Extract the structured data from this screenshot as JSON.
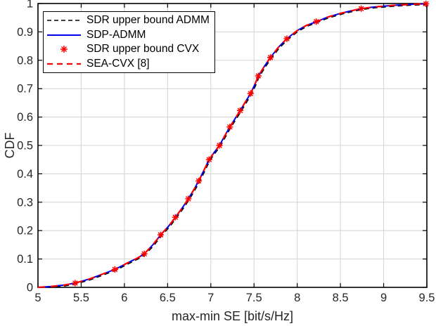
{
  "figure": {
    "kind": "matlab-style cdf figure",
    "background_color": "#ffffff",
    "axis_box_color": "#000000",
    "grid_color": "#d6d6d6",
    "tick_label_color": "#262626"
  },
  "axes": {
    "xlabel": "max-min SE [bit/s/Hz]",
    "ylabel": "CDF",
    "x_tick_labels": [
      "5",
      "5.5",
      "6",
      "6.5",
      "7",
      "7.5",
      "8",
      "8.5",
      "9",
      "9.5"
    ],
    "x_tick_values": [
      5,
      5.5,
      6,
      6.5,
      7,
      7.5,
      8,
      8.5,
      9,
      9.5
    ],
    "y_tick_labels": [
      "0",
      "0.1",
      "0.2",
      "0.3",
      "0.4",
      "0.5",
      "0.6",
      "0.7",
      "0.8",
      "0.9",
      "1"
    ],
    "y_tick_values": [
      0,
      0.1,
      0.2,
      0.3,
      0.4,
      0.5,
      0.6,
      0.7,
      0.8,
      0.9,
      1
    ]
  },
  "chart_data": {
    "type": "line",
    "title": "",
    "xlabel": "max-min SE [bit/s/Hz]",
    "ylabel": "CDF",
    "xlim": [
      5,
      9.5
    ],
    "ylim": [
      0,
      1
    ],
    "grid": true,
    "legend_position": "top-left",
    "point_sets": {
      "cdf_curve": {
        "x": [
          5.0,
          5.15,
          5.3,
          5.43,
          5.6,
          5.75,
          5.89,
          6.05,
          6.15,
          6.23,
          6.33,
          6.42,
          6.51,
          6.59,
          6.67,
          6.74,
          6.8,
          6.86,
          6.92,
          6.98,
          7.04,
          7.1,
          7.16,
          7.22,
          7.28,
          7.34,
          7.4,
          7.46,
          7.51,
          7.55,
          7.62,
          7.69,
          7.78,
          7.88,
          8.0,
          8.1,
          8.22,
          8.35,
          8.5,
          8.62,
          8.74,
          8.9,
          9.1,
          9.3,
          9.49,
          9.5
        ],
        "y": [
          0.0,
          0.003,
          0.008,
          0.015,
          0.03,
          0.047,
          0.063,
          0.088,
          0.103,
          0.118,
          0.15,
          0.185,
          0.215,
          0.247,
          0.28,
          0.312,
          0.342,
          0.375,
          0.412,
          0.45,
          0.476,
          0.5,
          0.533,
          0.565,
          0.594,
          0.623,
          0.653,
          0.683,
          0.715,
          0.745,
          0.779,
          0.81,
          0.845,
          0.876,
          0.905,
          0.922,
          0.936,
          0.952,
          0.965,
          0.974,
          0.982,
          0.988,
          0.993,
          0.997,
          0.999,
          1.0
        ]
      },
      "cvx_markers": {
        "x": [
          5.43,
          5.89,
          6.23,
          6.42,
          6.59,
          6.74,
          6.86,
          6.98,
          7.1,
          7.22,
          7.34,
          7.46,
          7.55,
          7.69,
          7.88,
          8.22,
          8.74,
          9.49
        ],
        "y": [
          0.015,
          0.063,
          0.118,
          0.185,
          0.247,
          0.312,
          0.375,
          0.45,
          0.5,
          0.565,
          0.623,
          0.683,
          0.745,
          0.81,
          0.876,
          0.936,
          0.982,
          0.999
        ]
      }
    },
    "series": [
      {
        "name": "SDR upper bound ADMM",
        "style": "dashed",
        "color": "#000000",
        "line_width": 1.6,
        "dash": "7 5",
        "points": "cdf_curve",
        "marker": "none"
      },
      {
        "name": "SDP-ADMM",
        "style": "solid",
        "color": "#0000ee",
        "line_width": 2.0,
        "dash": "",
        "points": "cdf_curve",
        "marker": "none"
      },
      {
        "name": "SDR upper bound CVX",
        "style": "none",
        "color": "#ff0000",
        "line_width": 1.5,
        "dash": "",
        "points": "cvx_markers",
        "marker": "asterisk"
      },
      {
        "name": "SEA-CVX [8]",
        "style": "dashed",
        "color": "#ff0000",
        "line_width": 2.2,
        "dash": "10 8",
        "points": "cdf_curve",
        "marker": "none"
      }
    ]
  },
  "legend": {
    "items": [
      {
        "label": "SDR upper bound ADMM"
      },
      {
        "label": "SDP-ADMM"
      },
      {
        "label": "SDR upper bound CVX"
      },
      {
        "label": "SEA-CVX [8]"
      }
    ]
  }
}
